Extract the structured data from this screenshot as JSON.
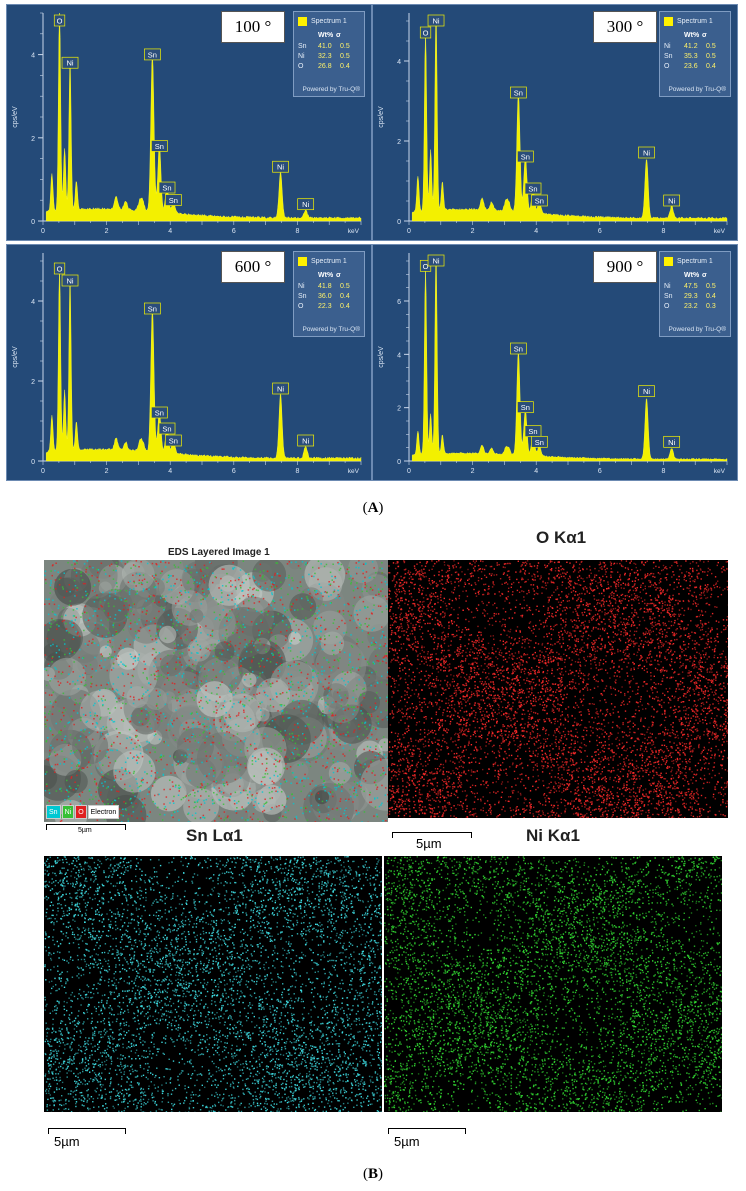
{
  "figure": {
    "caption_a": "A",
    "caption_b": "B"
  },
  "spectra_panels": [
    {
      "temperature_label": "100 °",
      "legend": {
        "title": "Spectrum 1",
        "col_wt": "Wt%",
        "col_sigma": "σ",
        "rows": [
          {
            "element": "Sn",
            "wt": "41.0",
            "sigma": "0.5"
          },
          {
            "element": "Ni",
            "wt": "32.3",
            "sigma": "0.5"
          },
          {
            "element": "O",
            "wt": "26.8",
            "sigma": "0.4"
          }
        ],
        "footer": "Powered by Tru-Q®"
      },
      "y_label": "cps/eV",
      "x_unit": "keV",
      "y_ticks": [
        "0",
        "2",
        "4"
      ],
      "y_max": 5.0,
      "x_ticks": [
        "0",
        "2",
        "4",
        "6",
        "8"
      ],
      "peak_labels": [
        "O",
        "Ni",
        "Sn",
        "Sn",
        "Sn",
        "Sn",
        "Ni",
        "Ni"
      ]
    },
    {
      "temperature_label": "300 °",
      "legend": {
        "title": "Spectrum 1",
        "col_wt": "Wt%",
        "col_sigma": "σ",
        "rows": [
          {
            "element": "Ni",
            "wt": "41.2",
            "sigma": "0.5"
          },
          {
            "element": "Sn",
            "wt": "35.3",
            "sigma": "0.5"
          },
          {
            "element": "O",
            "wt": "23.6",
            "sigma": "0.4"
          }
        ],
        "footer": "Powered by Tru-Q®"
      },
      "y_label": "cps/eV",
      "x_unit": "keV",
      "y_ticks": [
        "0",
        "2",
        "4"
      ],
      "y_max": 5.2,
      "x_ticks": [
        "0",
        "2",
        "4",
        "6",
        "8"
      ],
      "peak_labels": [
        "O",
        "Ni",
        "Sn",
        "Sn",
        "Sn",
        "Sn",
        "Ni",
        "Ni"
      ]
    },
    {
      "temperature_label": "600 °",
      "legend": {
        "title": "Spectrum 1",
        "col_wt": "Wt%",
        "col_sigma": "σ",
        "rows": [
          {
            "element": "Ni",
            "wt": "41.8",
            "sigma": "0.5"
          },
          {
            "element": "Sn",
            "wt": "36.0",
            "sigma": "0.4"
          },
          {
            "element": "O",
            "wt": "22.3",
            "sigma": "0.4"
          }
        ],
        "footer": "Powered by Tru-Q®"
      },
      "y_label": "cps/eV",
      "x_unit": "keV",
      "y_ticks": [
        "0",
        "2",
        "4"
      ],
      "y_max": 5.2,
      "x_ticks": [
        "0",
        "2",
        "4",
        "6",
        "8"
      ],
      "peak_labels": [
        "O",
        "Ni",
        "Sn",
        "Sn",
        "Sn",
        "Sn",
        "Ni",
        "Ni"
      ]
    },
    {
      "temperature_label": "900 °",
      "legend": {
        "title": "Spectrum 1",
        "col_wt": "Wt%",
        "col_sigma": "σ",
        "rows": [
          {
            "element": "Ni",
            "wt": "47.5",
            "sigma": "0.5"
          },
          {
            "element": "Sn",
            "wt": "29.3",
            "sigma": "0.4"
          },
          {
            "element": "O",
            "wt": "23.2",
            "sigma": "0.3"
          }
        ],
        "footer": "Powered by Tru-Q®"
      },
      "y_label": "cps/eV",
      "x_unit": "keV",
      "y_ticks": [
        "0",
        "2",
        "4",
        "6"
      ],
      "y_max": 7.8,
      "x_ticks": [
        "0",
        "2",
        "4",
        "6",
        "8"
      ],
      "peak_labels": [
        "O",
        "Ni",
        "Sn",
        "Sn",
        "Sn",
        "Sn",
        "Ni",
        "Ni"
      ]
    }
  ],
  "chart_data": [
    {
      "type": "line",
      "xlabel": "keV",
      "ylabel": "cps/eV",
      "xlim": [
        0,
        10
      ],
      "ylim": [
        0,
        5.0
      ],
      "peaks": [
        {
          "label": "O",
          "x": 0.52,
          "y": 4.9
        },
        {
          "label": "Ni",
          "x": 0.85,
          "y": 3.6
        },
        {
          "label": "Sn",
          "x": 3.44,
          "y": 3.8
        },
        {
          "label": "Sn",
          "x": 3.66,
          "y": 1.6
        },
        {
          "label": "Sn",
          "x": 3.9,
          "y": 0.6
        },
        {
          "label": "Sn",
          "x": 4.1,
          "y": 0.3
        },
        {
          "label": "Ni",
          "x": 7.47,
          "y": 1.1
        },
        {
          "label": "Ni",
          "x": 8.26,
          "y": 0.2
        }
      ]
    },
    {
      "type": "line",
      "xlabel": "keV",
      "ylabel": "cps/eV",
      "xlim": [
        0,
        10
      ],
      "ylim": [
        0,
        5.2
      ],
      "peaks": [
        {
          "label": "O",
          "x": 0.52,
          "y": 4.5
        },
        {
          "label": "Ni",
          "x": 0.85,
          "y": 5.0
        },
        {
          "label": "Sn",
          "x": 3.44,
          "y": 3.0
        },
        {
          "label": "Sn",
          "x": 3.66,
          "y": 1.4
        },
        {
          "label": "Sn",
          "x": 3.9,
          "y": 0.6
        },
        {
          "label": "Sn",
          "x": 4.1,
          "y": 0.3
        },
        {
          "label": "Ni",
          "x": 7.47,
          "y": 1.5
        },
        {
          "label": "Ni",
          "x": 8.26,
          "y": 0.3
        }
      ]
    },
    {
      "type": "line",
      "xlabel": "keV",
      "ylabel": "cps/eV",
      "xlim": [
        0,
        10
      ],
      "ylim": [
        0,
        5.2
      ],
      "peaks": [
        {
          "label": "O",
          "x": 0.52,
          "y": 4.6
        },
        {
          "label": "Ni",
          "x": 0.85,
          "y": 4.3
        },
        {
          "label": "Sn",
          "x": 3.44,
          "y": 3.6
        },
        {
          "label": "Sn",
          "x": 3.66,
          "y": 1.0
        },
        {
          "label": "Sn",
          "x": 3.9,
          "y": 0.6
        },
        {
          "label": "Sn",
          "x": 4.1,
          "y": 0.3
        },
        {
          "label": "Ni",
          "x": 7.47,
          "y": 1.6
        },
        {
          "label": "Ni",
          "x": 8.26,
          "y": 0.3
        }
      ]
    },
    {
      "type": "line",
      "xlabel": "keV",
      "ylabel": "cps/eV",
      "xlim": [
        0,
        10
      ],
      "ylim": [
        0,
        7.8
      ],
      "peaks": [
        {
          "label": "O",
          "x": 0.52,
          "y": 7.0
        },
        {
          "label": "Ni",
          "x": 0.85,
          "y": 7.6
        },
        {
          "label": "Sn",
          "x": 3.44,
          "y": 3.9
        },
        {
          "label": "Sn",
          "x": 3.66,
          "y": 1.7
        },
        {
          "label": "Sn",
          "x": 3.9,
          "y": 0.8
        },
        {
          "label": "Sn",
          "x": 4.1,
          "y": 0.4
        },
        {
          "label": "Ni",
          "x": 7.47,
          "y": 2.3
        },
        {
          "label": "Ni",
          "x": 8.26,
          "y": 0.4
        }
      ]
    }
  ],
  "eds_maps": {
    "layered": {
      "title": "EDS Layered Image 1",
      "scale": "5µm",
      "legend": [
        {
          "label": "Sn",
          "color": "#00c8d2"
        },
        {
          "label": "Ni",
          "color": "#36c036"
        },
        {
          "label": "O",
          "color": "#e02020"
        },
        {
          "label": "Electron",
          "color": "#ffffff"
        }
      ]
    },
    "o_map": {
      "title": "O Kα1",
      "scale": "5µm",
      "color": "#ff2a2a"
    },
    "sn_map": {
      "title": "Sn Lα1",
      "scale": "5µm",
      "color": "#3fe0e6"
    },
    "ni_map": {
      "title": "Ni Kα1",
      "scale": "5µm",
      "color": "#33dd33"
    }
  }
}
